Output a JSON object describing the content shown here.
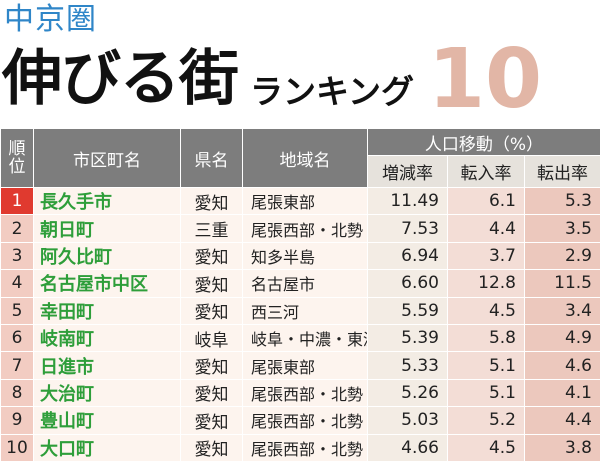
{
  "header": {
    "region": "中京圏",
    "title": "伸びる街",
    "subtitle": "ランキング",
    "number": "10"
  },
  "table": {
    "headers": {
      "rank_line1": "順",
      "rank_line2": "位",
      "city": "市区町名",
      "pref": "県名",
      "area": "地域名",
      "migration": "人口移動（%）",
      "increase": "増減率",
      "inflow": "転入率",
      "outflow": "転出率"
    },
    "rows": [
      {
        "rank": "1",
        "city": "長久手市",
        "pref": "愛知",
        "area": "尾張東部",
        "inc": "11.49",
        "in": "6.1",
        "out": "5.3"
      },
      {
        "rank": "2",
        "city": "朝日町",
        "pref": "三重",
        "area": "尾張西部・北勢",
        "inc": "7.53",
        "in": "4.4",
        "out": "3.5"
      },
      {
        "rank": "3",
        "city": "阿久比町",
        "pref": "愛知",
        "area": "知多半島",
        "inc": "6.94",
        "in": "3.7",
        "out": "2.9"
      },
      {
        "rank": "4",
        "city": "名古屋市中区",
        "pref": "愛知",
        "area": "名古屋市",
        "inc": "6.60",
        "in": "12.8",
        "out": "11.5"
      },
      {
        "rank": "5",
        "city": "幸田町",
        "pref": "愛知",
        "area": "西三河",
        "inc": "5.59",
        "in": "4.5",
        "out": "3.4"
      },
      {
        "rank": "6",
        "city": "岐南町",
        "pref": "岐阜",
        "area": "岐阜・中濃・東濃",
        "inc": "5.39",
        "in": "5.8",
        "out": "4.9"
      },
      {
        "rank": "7",
        "city": "日進市",
        "pref": "愛知",
        "area": "尾張東部",
        "inc": "5.33",
        "in": "5.1",
        "out": "4.6"
      },
      {
        "rank": "8",
        "city": "大治町",
        "pref": "愛知",
        "area": "尾張西部・北勢",
        "inc": "5.26",
        "in": "5.1",
        "out": "4.1"
      },
      {
        "rank": "9",
        "city": "豊山町",
        "pref": "愛知",
        "area": "尾張西部・北勢",
        "inc": "5.03",
        "in": "5.2",
        "out": "4.4"
      },
      {
        "rank": "10",
        "city": "大口町",
        "pref": "愛知",
        "area": "尾張西部・北勢",
        "inc": "4.66",
        "in": "4.5",
        "out": "3.8"
      }
    ]
  }
}
